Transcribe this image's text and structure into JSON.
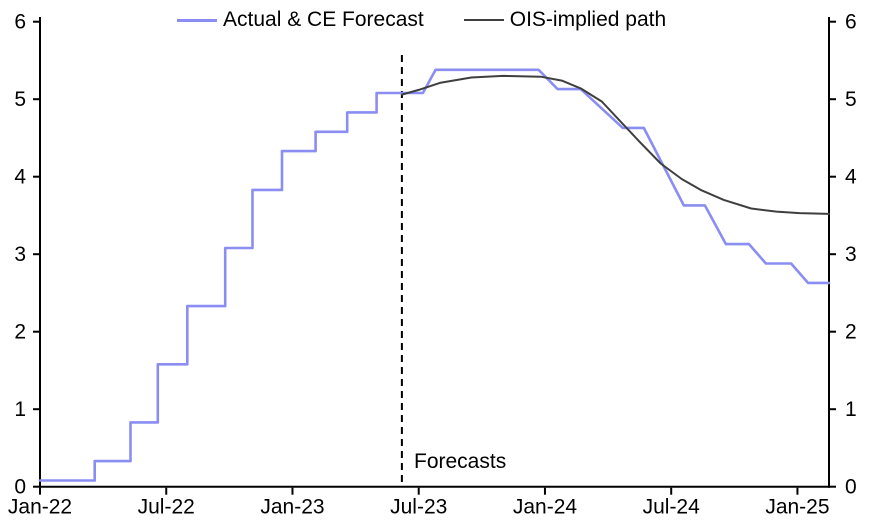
{
  "chart_data": {
    "type": "line",
    "title": "",
    "grid": "off",
    "legend_position": "top-center",
    "x_axis": {
      "tick_labels": [
        "Jan-22",
        "Jul-22",
        "Jan-23",
        "Jul-23",
        "Jan-24",
        "Jul-24",
        "Jan-25"
      ],
      "tick_months": [
        0,
        6,
        12,
        18,
        24,
        30,
        36
      ],
      "range_months": [
        0,
        37.5
      ]
    },
    "y_axis": {
      "min": 0,
      "max": 6,
      "ticks": [
        0,
        1,
        2,
        3,
        4,
        5,
        6
      ],
      "mirrored_right_axis": true
    },
    "series": [
      {
        "name": "Actual & CE Forecast",
        "color": "#8a8df2",
        "width": 2.6,
        "style": "stepped-then-slanted",
        "points": [
          [
            0,
            0.08
          ],
          [
            2.6,
            0.08
          ],
          [
            2.6,
            0.33
          ],
          [
            4.3,
            0.33
          ],
          [
            4.3,
            0.83
          ],
          [
            5.6,
            0.83
          ],
          [
            5.6,
            1.58
          ],
          [
            7.0,
            1.58
          ],
          [
            7.0,
            2.33
          ],
          [
            8.8,
            2.33
          ],
          [
            8.8,
            3.08
          ],
          [
            10.1,
            3.08
          ],
          [
            10.1,
            3.83
          ],
          [
            11.5,
            3.83
          ],
          [
            11.5,
            4.33
          ],
          [
            13.1,
            4.33
          ],
          [
            13.1,
            4.58
          ],
          [
            14.6,
            4.58
          ],
          [
            14.6,
            4.83
          ],
          [
            16.0,
            4.83
          ],
          [
            16.0,
            5.08
          ],
          [
            18.2,
            5.08
          ],
          [
            18.8,
            5.38
          ],
          [
            23.7,
            5.38
          ],
          [
            24.6,
            5.13
          ],
          [
            25.7,
            5.13
          ],
          [
            27.7,
            4.63
          ],
          [
            28.7,
            4.63
          ],
          [
            30.6,
            3.63
          ],
          [
            31.6,
            3.63
          ],
          [
            32.6,
            3.13
          ],
          [
            33.7,
            3.13
          ],
          [
            34.5,
            2.88
          ],
          [
            35.7,
            2.88
          ],
          [
            36.5,
            2.63
          ],
          [
            37.5,
            2.63
          ]
        ]
      },
      {
        "name": "OIS-implied path",
        "color": "#3f3f3f",
        "width": 2,
        "style": "smooth",
        "points": [
          [
            17.2,
            5.06
          ],
          [
            18.0,
            5.12
          ],
          [
            19.0,
            5.21
          ],
          [
            20.5,
            5.28
          ],
          [
            22.0,
            5.3
          ],
          [
            23.8,
            5.29
          ],
          [
            24.8,
            5.24
          ],
          [
            25.7,
            5.14
          ],
          [
            26.7,
            4.97
          ],
          [
            27.6,
            4.71
          ],
          [
            28.5,
            4.45
          ],
          [
            29.5,
            4.17
          ],
          [
            30.5,
            3.97
          ],
          [
            31.4,
            3.83
          ],
          [
            32.5,
            3.7
          ],
          [
            33.8,
            3.59
          ],
          [
            35.0,
            3.55
          ],
          [
            36.1,
            3.53
          ],
          [
            37.5,
            3.52
          ]
        ]
      }
    ],
    "forecast_marker": {
      "label": "Forecasts",
      "month": 17.2,
      "line_style": "dashed",
      "line_color": "#000000"
    },
    "axis_color": "#000000"
  }
}
